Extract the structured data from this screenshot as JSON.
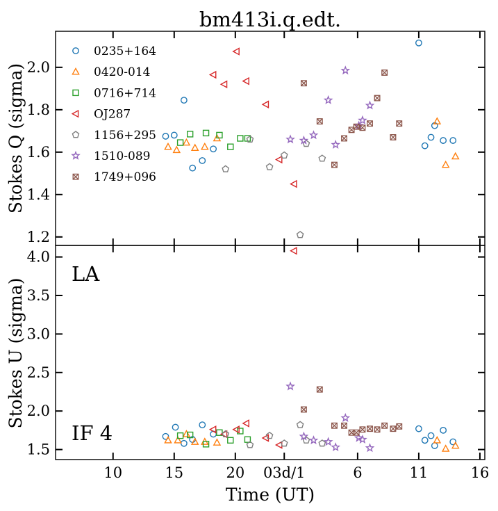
{
  "chart_data": {
    "type": "scatter",
    "title": "bm413i.q.edt.",
    "xlabel": "Time (UT)",
    "x_ticks": [
      {
        "h": 10,
        "label": "10"
      },
      {
        "h": 15,
        "label": "15"
      },
      {
        "h": 20,
        "label": "20"
      },
      {
        "h": 24,
        "label": "03d/1"
      },
      {
        "h": 30,
        "label": "6"
      },
      {
        "h": 35,
        "label": "11"
      },
      {
        "h": 40,
        "label": "16"
      }
    ],
    "xlim": [
      5.3,
      40.4
    ],
    "panels": [
      {
        "id": "q",
        "ylabel": "Stokes Q (sigma)",
        "ylim": [
          1.16,
          2.17
        ],
        "yticks": [
          "1.2",
          "1.4",
          "1.6",
          "1.8",
          "2.0"
        ],
        "labels": [],
        "legend": "top-left"
      },
      {
        "id": "u",
        "ylabel": "Stokes U (sigma)",
        "ylim": [
          1.37,
          4.15
        ],
        "yticks": [
          "1.5",
          "2.0",
          "2.5",
          "3.0",
          "3.5",
          "4.0"
        ],
        "labels": [
          {
            "text": "LA",
            "pos": "top-left"
          },
          {
            "text": "IF 4",
            "pos": "bottom-left"
          }
        ]
      }
    ],
    "series": [
      {
        "name": "0235+164",
        "marker": "circle",
        "color": "#1f77b4",
        "q": [
          [
            14.3,
            1.675
          ],
          [
            15.0,
            1.68
          ],
          [
            15.8,
            1.845
          ],
          [
            16.5,
            1.525
          ],
          [
            17.3,
            1.56
          ],
          [
            18.2,
            1.615
          ],
          [
            35.0,
            2.115
          ],
          [
            35.5,
            1.63
          ],
          [
            36.0,
            1.67
          ],
          [
            36.3,
            1.725
          ],
          [
            37.0,
            1.655
          ],
          [
            37.8,
            1.655
          ]
        ],
        "u": [
          [
            14.3,
            1.67
          ],
          [
            15.1,
            1.79
          ],
          [
            15.8,
            1.58
          ],
          [
            16.5,
            1.63
          ],
          [
            17.3,
            1.82
          ],
          [
            18.2,
            1.7
          ],
          [
            35.0,
            1.77
          ],
          [
            35.5,
            1.62
          ],
          [
            36.0,
            1.68
          ],
          [
            36.3,
            1.55
          ],
          [
            37.0,
            1.75
          ],
          [
            37.8,
            1.6
          ]
        ]
      },
      {
        "name": "0420-014",
        "marker": "triangle-up",
        "color": "#ff7f0e",
        "q": [
          [
            14.5,
            1.625
          ],
          [
            15.2,
            1.61
          ],
          [
            16.0,
            1.645
          ],
          [
            16.7,
            1.62
          ],
          [
            17.5,
            1.625
          ],
          [
            18.5,
            1.665
          ],
          [
            36.5,
            1.745
          ],
          [
            37.2,
            1.54
          ],
          [
            38.0,
            1.58
          ]
        ],
        "u": [
          [
            14.5,
            1.62
          ],
          [
            15.3,
            1.62
          ],
          [
            16.0,
            1.7
          ],
          [
            16.7,
            1.6
          ],
          [
            17.5,
            1.6
          ],
          [
            18.5,
            1.59
          ],
          [
            36.5,
            1.62
          ],
          [
            37.2,
            1.51
          ],
          [
            38.0,
            1.55
          ]
        ]
      },
      {
        "name": "0716+714",
        "marker": "square",
        "color": "#2ca02c",
        "q": [
          [
            15.5,
            1.645
          ],
          [
            16.3,
            1.685
          ],
          [
            17.6,
            1.69
          ],
          [
            18.7,
            1.68
          ],
          [
            19.6,
            1.625
          ],
          [
            20.4,
            1.665
          ],
          [
            21.0,
            1.665
          ]
        ],
        "u": [
          [
            15.5,
            1.68
          ],
          [
            16.3,
            1.69
          ],
          [
            17.6,
            1.57
          ],
          [
            18.7,
            1.72
          ],
          [
            19.6,
            1.62
          ],
          [
            20.4,
            1.74
          ],
          [
            21.0,
            1.63
          ]
        ]
      },
      {
        "name": "OJ287",
        "marker": "triangle-left",
        "color": "#d62728",
        "q": [
          [
            18.2,
            1.965
          ],
          [
            19.1,
            1.92
          ],
          [
            20.1,
            2.075
          ],
          [
            20.9,
            1.935
          ],
          [
            22.5,
            1.825
          ],
          [
            23.6,
            1.565
          ],
          [
            24.8,
            1.45
          ]
        ],
        "u": [
          [
            18.2,
            1.76
          ],
          [
            19.1,
            1.7
          ],
          [
            20.1,
            1.76
          ],
          [
            20.9,
            1.84
          ],
          [
            22.5,
            1.65
          ],
          [
            23.6,
            1.56
          ],
          [
            24.8,
            4.08
          ]
        ]
      },
      {
        "name": "1156+295",
        "marker": "pentagon",
        "color": "#7f7f7f",
        "q": [
          [
            19.2,
            1.52
          ],
          [
            21.2,
            1.66
          ],
          [
            22.8,
            1.53
          ],
          [
            24.0,
            1.585
          ],
          [
            25.3,
            1.21
          ],
          [
            25.8,
            1.64
          ],
          [
            27.1,
            1.57
          ]
        ],
        "u": [
          [
            19.2,
            1.7
          ],
          [
            21.2,
            1.56
          ],
          [
            22.8,
            1.68
          ],
          [
            24.0,
            1.58
          ],
          [
            25.3,
            1.82
          ],
          [
            25.8,
            1.62
          ],
          [
            27.1,
            1.58
          ]
        ]
      },
      {
        "name": "1510-089",
        "marker": "star",
        "color": "#9467bd",
        "q": [
          [
            24.5,
            1.66
          ],
          [
            25.6,
            1.655
          ],
          [
            26.4,
            1.68
          ],
          [
            27.6,
            1.845
          ],
          [
            28.2,
            1.635
          ],
          [
            29.0,
            1.985
          ],
          [
            30.1,
            1.725
          ],
          [
            30.4,
            1.75
          ],
          [
            31.0,
            1.82
          ]
        ],
        "u": [
          [
            24.5,
            2.32
          ],
          [
            25.6,
            1.67
          ],
          [
            26.4,
            1.62
          ],
          [
            27.6,
            1.6
          ],
          [
            28.2,
            1.53
          ],
          [
            29.0,
            1.91
          ],
          [
            30.1,
            1.65
          ],
          [
            30.4,
            1.63
          ],
          [
            31.0,
            1.52
          ]
        ]
      },
      {
        "name": "1749+096",
        "marker": "plus-x",
        "color": "#8c564b",
        "q": [
          [
            25.6,
            1.925
          ],
          [
            26.9,
            1.745
          ],
          [
            28.1,
            1.54
          ],
          [
            28.9,
            1.665
          ],
          [
            29.5,
            1.705
          ],
          [
            29.9,
            1.72
          ],
          [
            30.4,
            1.715
          ],
          [
            31.0,
            1.735
          ],
          [
            31.6,
            1.855
          ],
          [
            32.2,
            1.975
          ],
          [
            32.9,
            1.67
          ],
          [
            33.4,
            1.735
          ]
        ],
        "u": [
          [
            25.6,
            2.02
          ],
          [
            26.9,
            2.28
          ],
          [
            28.1,
            1.81
          ],
          [
            28.9,
            1.81
          ],
          [
            29.5,
            1.72
          ],
          [
            29.9,
            1.72
          ],
          [
            30.4,
            1.76
          ],
          [
            31.0,
            1.77
          ],
          [
            31.6,
            1.76
          ],
          [
            32.2,
            1.81
          ],
          [
            32.9,
            1.77
          ],
          [
            33.4,
            1.8
          ]
        ]
      }
    ]
  }
}
